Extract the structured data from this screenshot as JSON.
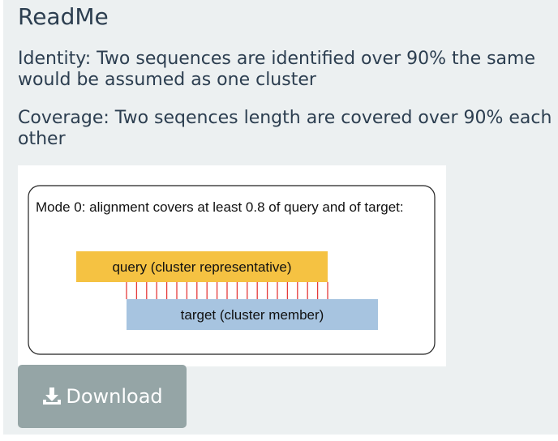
{
  "readme": {
    "title": "ReadMe",
    "identity_text": "Identity: Two sequences are identified over 90% the same would be assumed as one cluster",
    "coverage_text": "Coverage: Two seqences length are covered over 90% each other"
  },
  "figure": {
    "caption": "Mode 0: alignment covers at least 0.8 of query and of target:",
    "query_label": "query (cluster representative)",
    "target_label": "target (cluster member)",
    "colors": {
      "query": "#f5c242",
      "target": "#a7c4e0",
      "links": "#e53b3b"
    }
  },
  "download": {
    "label": "Download",
    "icon": "download-icon"
  }
}
